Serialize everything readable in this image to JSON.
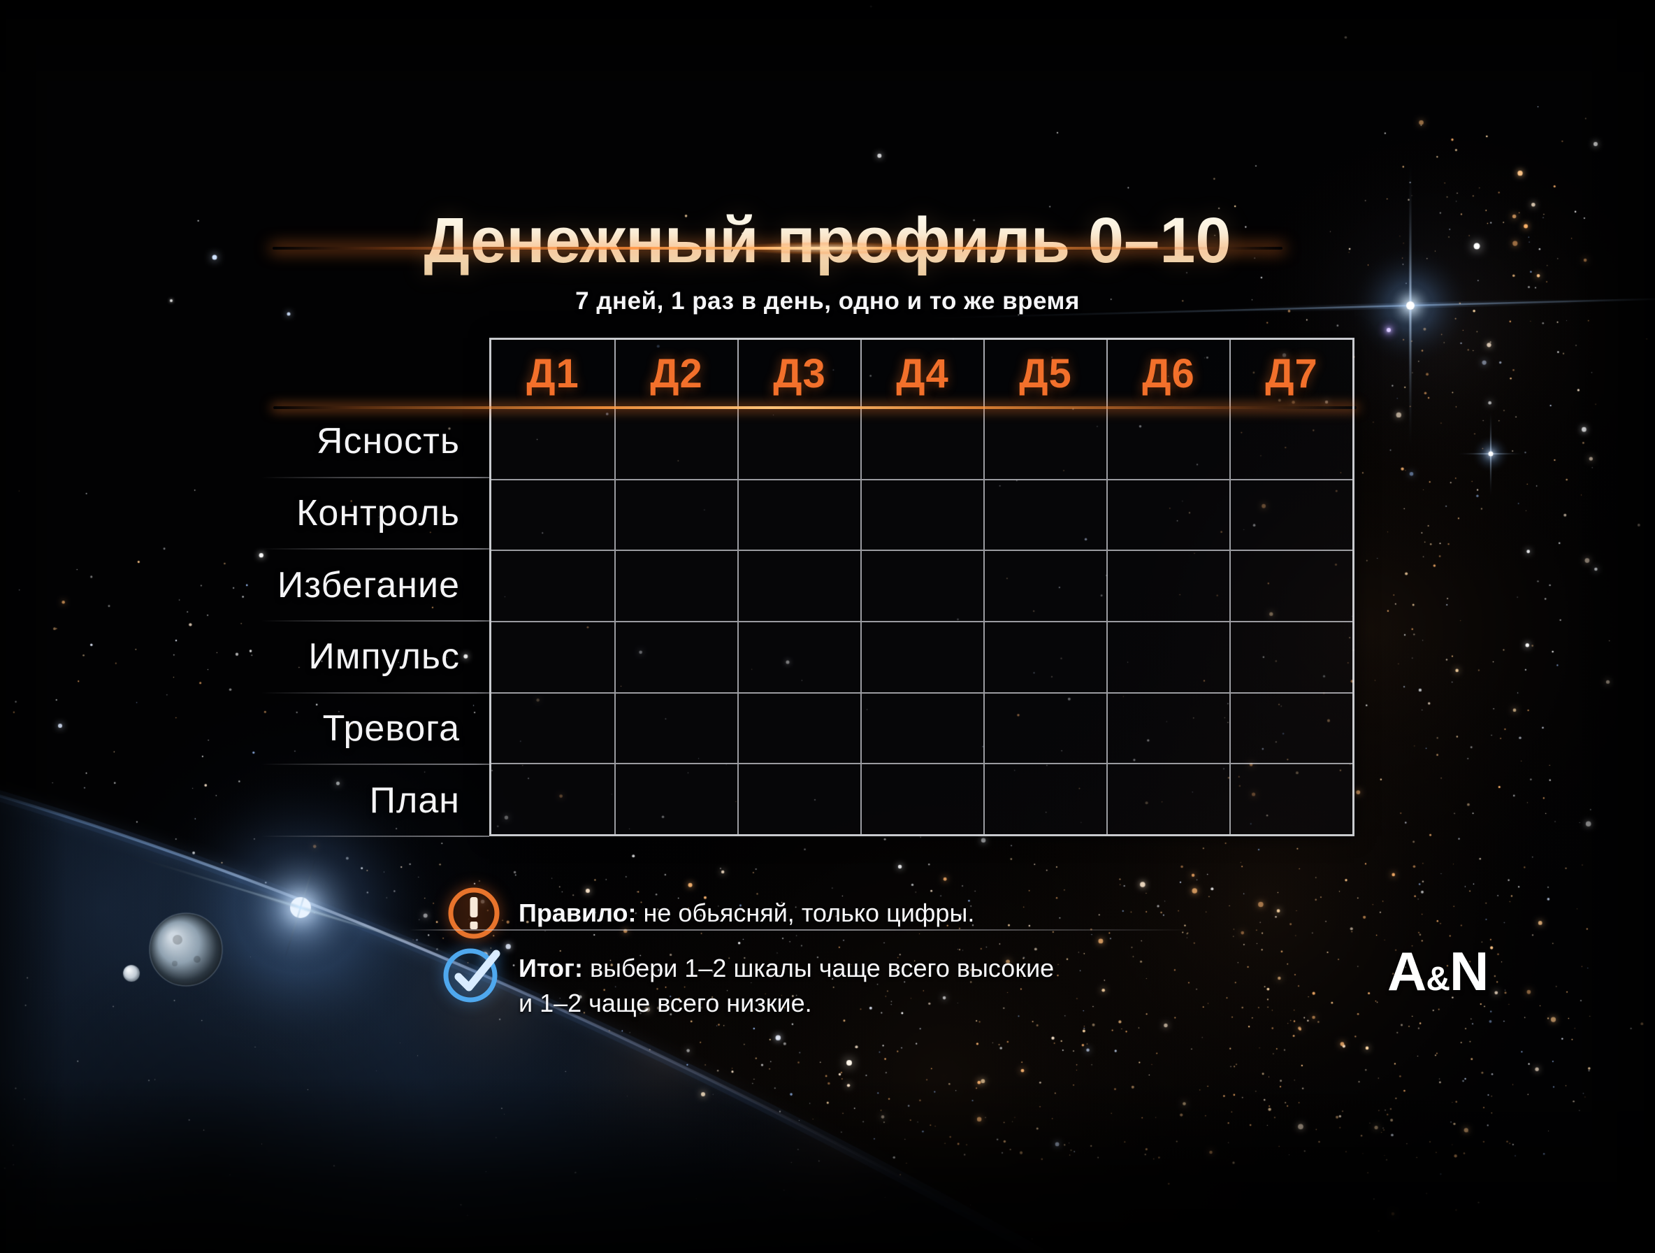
{
  "title": "Денежный профиль 0–10",
  "subtitle": "7 дней, 1 раз в день, одно и то же время",
  "table": {
    "day_columns": [
      "Д1",
      "Д2",
      "Д3",
      "Д4",
      "Д5",
      "Д6",
      "Д7"
    ],
    "scale_rows": [
      "Ясность",
      "Контроль",
      "Избегание",
      "Импульс",
      "Тревога",
      "План"
    ],
    "cells_per_row": 7,
    "cell_values": []
  },
  "notes": {
    "rule": {
      "icon": "exclamation-icon",
      "label": "Правило:",
      "text": "не обьясняй, только цифры."
    },
    "summary": {
      "icon": "check-icon",
      "label": "Итог:",
      "line1": "выбери 1–2 шкалы чаще всего высокие",
      "line2": "и 1–2 чаще всего низкие."
    }
  },
  "logo": {
    "a": "A",
    "amp": "&",
    "n": "N"
  },
  "colors": {
    "accent_orange": "#f2702b",
    "accent_blue": "#4fa8ee",
    "title_cream": "#f7ead2",
    "grid_line": "#d4d6dc",
    "text_white": "#f5f5f7"
  }
}
